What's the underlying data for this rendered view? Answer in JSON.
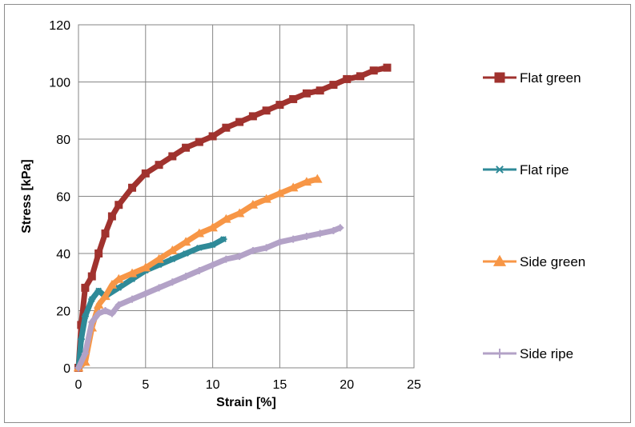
{
  "chart_data": {
    "type": "line",
    "title": "",
    "xlabel": "Strain [%]",
    "ylabel": "Stress [kPa]",
    "xlim": [
      0,
      25
    ],
    "ylim": [
      0,
      120
    ],
    "xticks": [
      0,
      5,
      10,
      15,
      20,
      25
    ],
    "yticks": [
      0,
      20,
      40,
      60,
      80,
      100,
      120
    ],
    "grid": true,
    "legend_position": "right",
    "series": [
      {
        "name": "Flat green",
        "color": "#a0322e",
        "marker": "square",
        "x": [
          0,
          0.2,
          0.5,
          1,
          1.5,
          2,
          2.5,
          3,
          4,
          5,
          6,
          7,
          8,
          9,
          10,
          11,
          12,
          13,
          14,
          15,
          16,
          17,
          18,
          19,
          20,
          21,
          22,
          23
        ],
        "y": [
          0,
          15,
          28,
          32,
          40,
          47,
          53,
          57,
          63,
          68,
          71,
          74,
          77,
          79,
          81,
          84,
          86,
          88,
          90,
          92,
          94,
          96,
          97,
          99,
          101,
          102,
          104,
          105
        ]
      },
      {
        "name": "Flat ripe",
        "color": "#2f8a98",
        "marker": "asterisk",
        "x": [
          0,
          0.2,
          0.5,
          1,
          1.5,
          2,
          3,
          4,
          5,
          6,
          7,
          8,
          9,
          10,
          10.8
        ],
        "y": [
          0,
          10,
          18,
          24,
          27,
          25,
          28,
          31,
          34,
          36,
          38,
          40,
          42,
          43,
          45
        ]
      },
      {
        "name": "Side green",
        "color": "#f79646",
        "marker": "triangle",
        "x": [
          0,
          0.5,
          1,
          1.5,
          2,
          2.5,
          3,
          4,
          5,
          6,
          7,
          8,
          9,
          10,
          11,
          12,
          13,
          14,
          15,
          16,
          17,
          17.8
        ],
        "y": [
          0,
          2,
          14,
          22,
          25,
          29,
          31,
          33,
          35,
          38,
          41,
          44,
          47,
          49,
          52,
          54,
          57,
          59,
          61,
          63,
          65,
          66
        ]
      },
      {
        "name": "Side ripe",
        "color": "#b3a2c7",
        "marker": "plus",
        "x": [
          0,
          0.5,
          1,
          1.5,
          2,
          2.5,
          3,
          4,
          5,
          6,
          7,
          8,
          9,
          10,
          11,
          12,
          13,
          14,
          15,
          16,
          17,
          18,
          19,
          19.5
        ],
        "y": [
          0,
          5,
          16,
          19,
          20,
          19,
          22,
          24,
          26,
          28,
          30,
          32,
          34,
          36,
          38,
          39,
          41,
          42,
          44,
          45,
          46,
          47,
          48,
          49
        ]
      }
    ]
  }
}
